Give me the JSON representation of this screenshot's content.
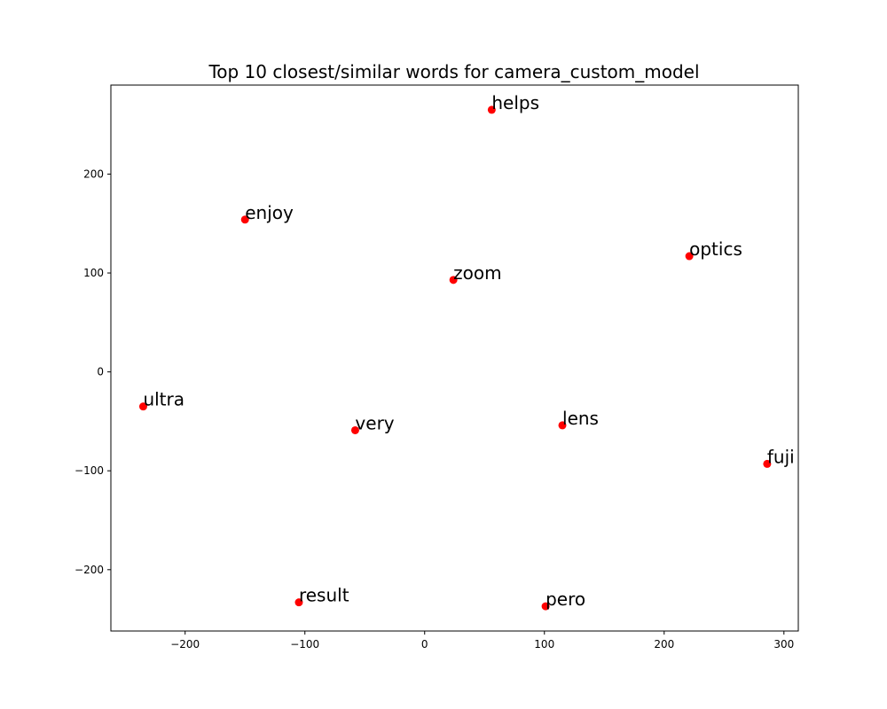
{
  "chart_data": {
    "type": "scatter",
    "title": "Top 10 closest/similar words for camera_custom_model",
    "xlabel": "",
    "ylabel": "",
    "xlim": [
      -262,
      312
    ],
    "ylim": [
      -262,
      290
    ],
    "xticks": [
      -200,
      -100,
      0,
      100,
      200,
      300
    ],
    "yticks": [
      -200,
      -100,
      0,
      100,
      200
    ],
    "xtick_labels": [
      "−200",
      "−100",
      "0",
      "100",
      "200",
      "300"
    ],
    "ytick_labels": [
      "−200",
      "−100",
      "0",
      "100",
      "200"
    ],
    "grid": false,
    "point_color": "#ff0000",
    "points": [
      {
        "label": "helps",
        "x": 56,
        "y": 265
      },
      {
        "label": "enjoy",
        "x": -150,
        "y": 154
      },
      {
        "label": "optics",
        "x": 221,
        "y": 117
      },
      {
        "label": "zoom",
        "x": 24,
        "y": 93
      },
      {
        "label": "ultra",
        "x": -235,
        "y": -35
      },
      {
        "label": "very",
        "x": -58,
        "y": -59
      },
      {
        "label": "lens",
        "x": 115,
        "y": -54
      },
      {
        "label": "fuji",
        "x": 286,
        "y": -93
      },
      {
        "label": "result",
        "x": -105,
        "y": -233
      },
      {
        "label": "pero",
        "x": 101,
        "y": -237
      }
    ]
  }
}
